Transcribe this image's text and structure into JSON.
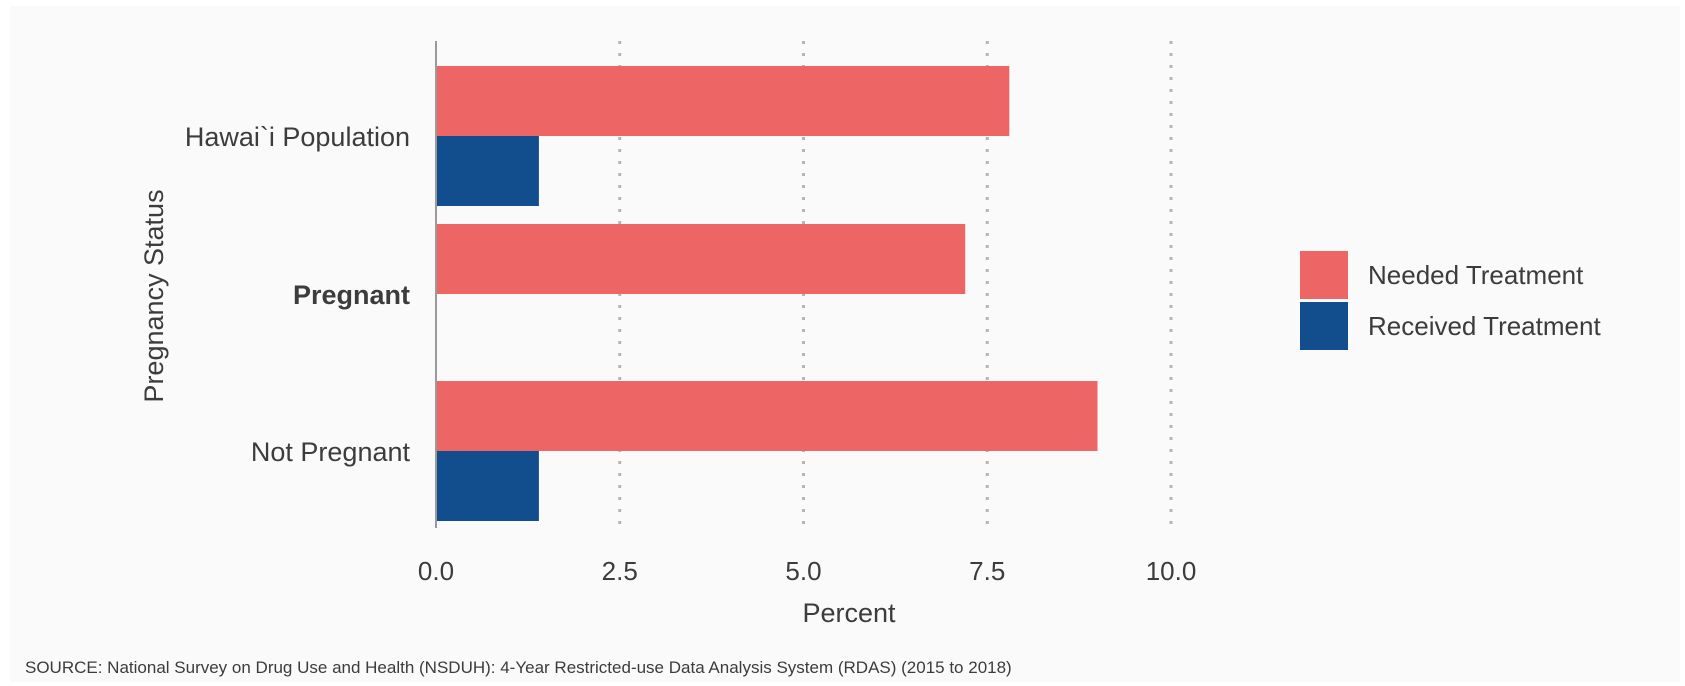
{
  "chart_data": {
    "type": "bar",
    "orientation": "horizontal",
    "categories": [
      {
        "label": "Hawai`i Population",
        "bold": false
      },
      {
        "label": "Pregnant",
        "bold": true
      },
      {
        "label": "Not Pregnant",
        "bold": false
      }
    ],
    "series": [
      {
        "name": "Needed Treatment",
        "color": "#ee6565",
        "values": [
          7.8,
          7.2,
          9.0
        ]
      },
      {
        "name": "Received Treatment",
        "color": "#124e8d",
        "values": [
          1.4,
          null,
          1.4
        ]
      }
    ],
    "xlim": [
      0,
      10.3
    ],
    "xticks": [
      "0.0",
      "2.5",
      "5.0",
      "7.5",
      "10.0"
    ],
    "xtick_values": [
      0,
      2.5,
      5,
      7.5,
      10
    ],
    "xlabel": "Percent",
    "ylabel": "Pregnancy Status",
    "grid": "vertical dotted",
    "legend_position": "right"
  },
  "source_note": "SOURCE: National Survey on Drug Use and Health (NSDUH): 4-Year Restricted-use Data Analysis System (RDAS) (2015 to 2018)"
}
